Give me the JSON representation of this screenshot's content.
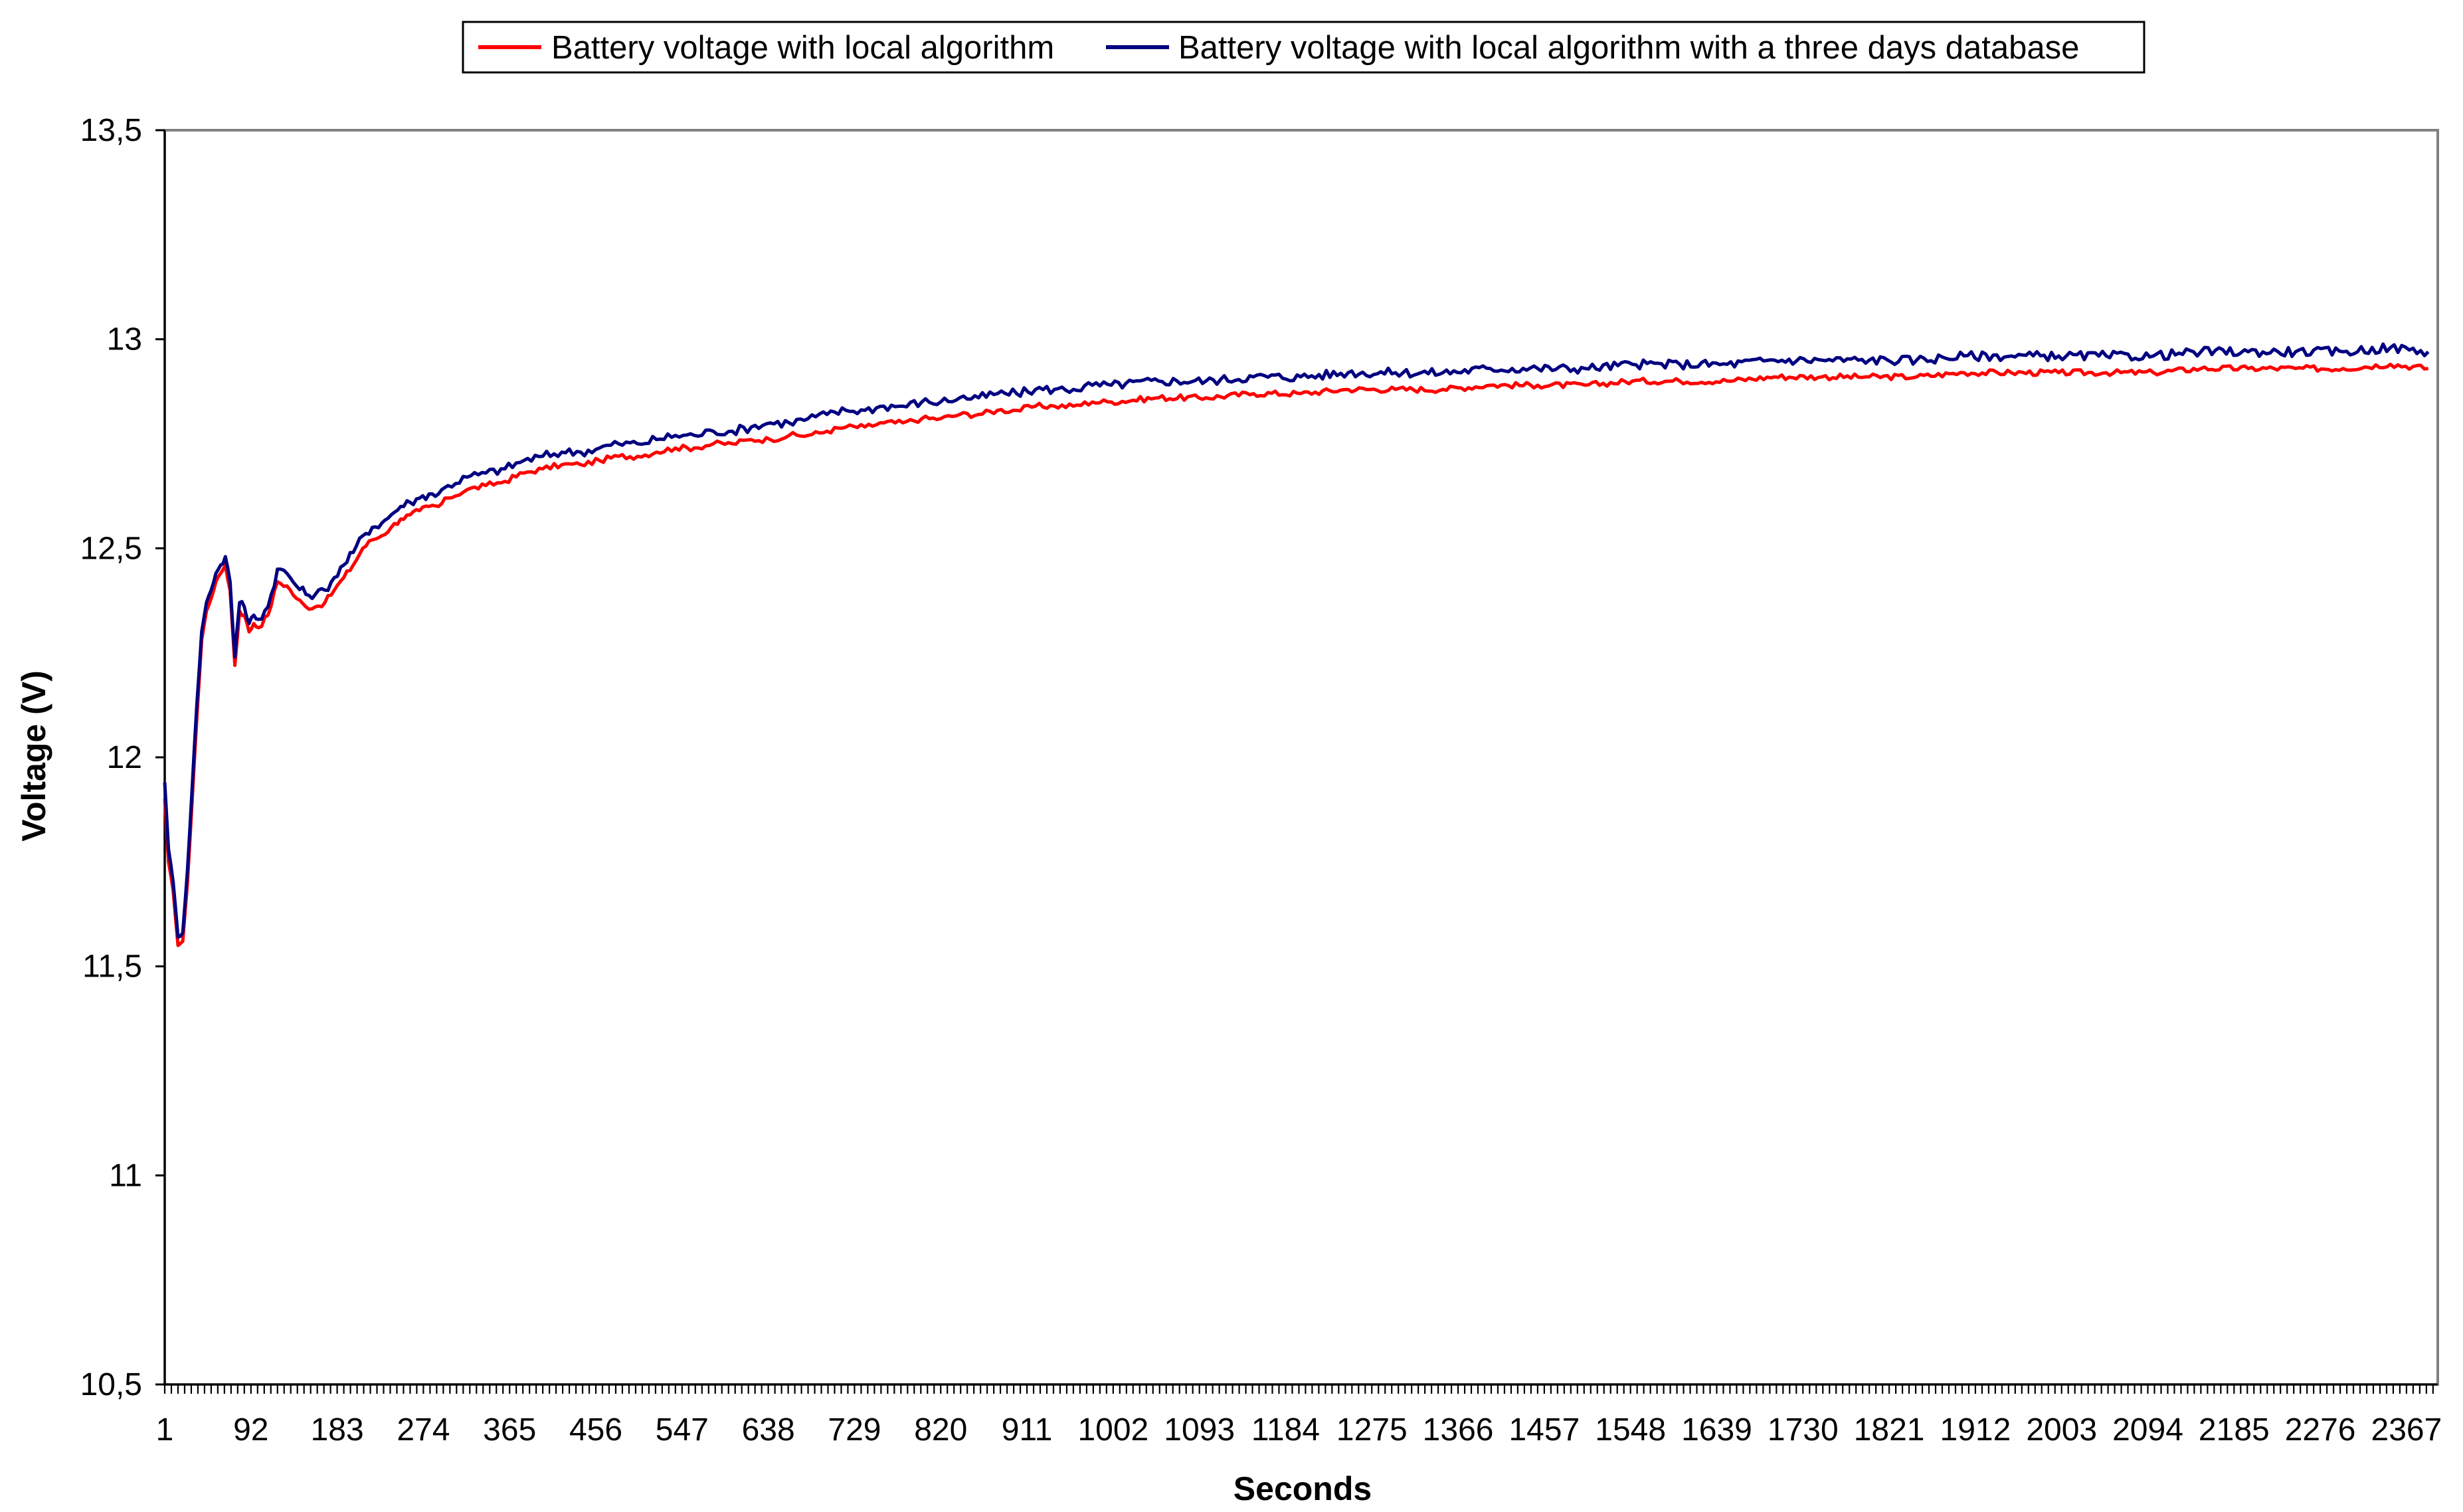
{
  "chart_data": {
    "type": "line",
    "title": "",
    "xlabel": "Seconds",
    "ylabel": "Voltage (V)",
    "xlim": [
      1,
      2400
    ],
    "ylim": [
      10.5,
      13.5
    ],
    "y_ticks": [
      "13,5",
      "13",
      "12,5",
      "12",
      "11,5",
      "11",
      "10,5"
    ],
    "y_tick_values": [
      13.5,
      13.0,
      12.5,
      12.0,
      11.5,
      11.0,
      10.5
    ],
    "x_ticks": [
      "1",
      "92",
      "183",
      "274",
      "365",
      "456",
      "547",
      "638",
      "729",
      "820",
      "911",
      "1002",
      "1093",
      "1184",
      "1275",
      "1366",
      "1457",
      "1548",
      "1639",
      "1730",
      "1821",
      "1912",
      "2003",
      "2094",
      "2185",
      "2276",
      "2367"
    ],
    "x_tick_values": [
      1,
      92,
      183,
      274,
      365,
      456,
      547,
      638,
      729,
      820,
      911,
      1002,
      1093,
      1184,
      1275,
      1366,
      1457,
      1548,
      1639,
      1730,
      1821,
      1912,
      2003,
      2094,
      2185,
      2276,
      2367
    ],
    "grid": false,
    "legend_position": "top-center",
    "series": [
      {
        "name": "Battery voltage with local algorithm",
        "color": "#ff0000",
        "x": [
          1,
          5,
          10,
          15,
          20,
          25,
          30,
          35,
          40,
          45,
          50,
          55,
          60,
          65,
          70,
          75,
          80,
          85,
          90,
          95,
          100,
          110,
          120,
          130,
          140,
          150,
          160,
          170,
          180,
          190,
          200,
          210,
          220,
          230,
          240,
          250,
          260,
          270,
          280,
          290,
          300,
          320,
          340,
          360,
          380,
          400,
          420,
          440,
          460,
          480,
          500,
          520,
          540,
          560,
          580,
          600,
          620,
          640,
          660,
          680,
          700,
          720,
          740,
          760,
          780,
          800,
          820,
          840,
          860,
          880,
          900,
          920,
          940,
          960,
          980,
          1000,
          1050,
          1100,
          1150,
          1200,
          1250,
          1300,
          1350,
          1400,
          1450,
          1500,
          1550,
          1600,
          1650,
          1700,
          1750,
          1800,
          1850,
          1900,
          1950,
          2000,
          2050,
          2100,
          2150,
          2200,
          2250,
          2300,
          2350,
          2390
        ],
        "values": [
          11.9,
          11.75,
          11.68,
          11.55,
          11.56,
          11.7,
          11.9,
          12.1,
          12.28,
          12.35,
          12.38,
          12.42,
          12.44,
          12.46,
          12.4,
          12.22,
          12.35,
          12.34,
          12.3,
          12.32,
          12.31,
          12.34,
          12.42,
          12.41,
          12.38,
          12.36,
          12.36,
          12.37,
          12.4,
          12.43,
          12.46,
          12.5,
          12.52,
          12.53,
          12.55,
          12.57,
          12.58,
          12.59,
          12.6,
          12.6,
          12.62,
          12.64,
          12.65,
          12.66,
          12.68,
          12.69,
          12.7,
          12.7,
          12.71,
          12.72,
          12.72,
          12.73,
          12.74,
          12.74,
          12.75,
          12.75,
          12.76,
          12.76,
          12.77,
          12.77,
          12.78,
          12.79,
          12.79,
          12.8,
          12.8,
          12.81,
          12.81,
          12.82,
          12.82,
          12.83,
          12.83,
          12.84,
          12.84,
          12.84,
          12.85,
          12.85,
          12.86,
          12.86,
          12.87,
          12.87,
          12.88,
          12.88,
          12.88,
          12.89,
          12.89,
          12.89,
          12.9,
          12.9,
          12.9,
          12.91,
          12.91,
          12.91,
          12.91,
          12.92,
          12.92,
          12.92,
          12.92,
          12.92,
          12.93,
          12.93,
          12.93,
          12.93,
          12.94,
          12.93
        ]
      },
      {
        "name": "Battery voltage with local algorithm with a three days database",
        "color": "#000080",
        "x": [
          1,
          5,
          10,
          15,
          20,
          25,
          30,
          35,
          40,
          45,
          50,
          55,
          60,
          65,
          70,
          75,
          80,
          85,
          90,
          95,
          100,
          110,
          120,
          130,
          140,
          150,
          160,
          170,
          180,
          190,
          200,
          210,
          220,
          230,
          240,
          250,
          260,
          270,
          280,
          290,
          300,
          320,
          340,
          360,
          380,
          400,
          420,
          440,
          460,
          480,
          500,
          520,
          540,
          560,
          580,
          600,
          620,
          640,
          660,
          680,
          700,
          720,
          740,
          760,
          780,
          800,
          820,
          840,
          860,
          880,
          900,
          920,
          940,
          960,
          980,
          1000,
          1050,
          1100,
          1150,
          1200,
          1250,
          1300,
          1350,
          1400,
          1450,
          1500,
          1550,
          1600,
          1650,
          1700,
          1750,
          1800,
          1850,
          1900,
          1950,
          2000,
          2050,
          2100,
          2150,
          2200,
          2250,
          2300,
          2350,
          2390
        ],
        "values": [
          11.94,
          11.78,
          11.7,
          11.57,
          11.58,
          11.73,
          11.93,
          12.13,
          12.3,
          12.37,
          12.4,
          12.44,
          12.46,
          12.48,
          12.42,
          12.24,
          12.37,
          12.36,
          12.32,
          12.34,
          12.33,
          12.36,
          12.45,
          12.44,
          12.41,
          12.39,
          12.39,
          12.4,
          12.43,
          12.46,
          12.49,
          12.53,
          12.55,
          12.56,
          12.58,
          12.6,
          12.61,
          12.62,
          12.63,
          12.63,
          12.65,
          12.67,
          12.68,
          12.69,
          12.71,
          12.72,
          12.73,
          12.73,
          12.74,
          12.75,
          12.75,
          12.76,
          12.77,
          12.77,
          12.78,
          12.78,
          12.79,
          12.8,
          12.8,
          12.81,
          12.82,
          12.83,
          12.83,
          12.84,
          12.84,
          12.85,
          12.85,
          12.86,
          12.86,
          12.87,
          12.87,
          12.88,
          12.88,
          12.88,
          12.89,
          12.89,
          12.9,
          12.9,
          12.91,
          12.91,
          12.92,
          12.92,
          12.92,
          12.93,
          12.93,
          12.93,
          12.94,
          12.94,
          12.94,
          12.95,
          12.95,
          12.95,
          12.95,
          12.96,
          12.96,
          12.96,
          12.96,
          12.96,
          12.97,
          12.97,
          12.97,
          12.97,
          12.98,
          12.97
        ]
      }
    ]
  }
}
